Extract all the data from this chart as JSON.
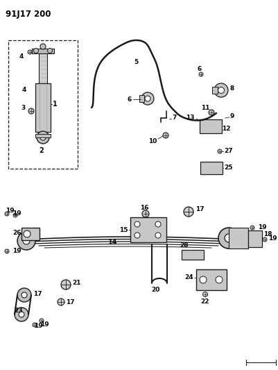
{
  "title": "91J17 200",
  "bg_color": "#ffffff",
  "line_color": "#1a1a1a",
  "label_color": "#000000",
  "title_fontsize": 8.5,
  "label_fontsize": 6.5,
  "fig_width": 4.01,
  "fig_height": 5.33,
  "dpi": 100
}
